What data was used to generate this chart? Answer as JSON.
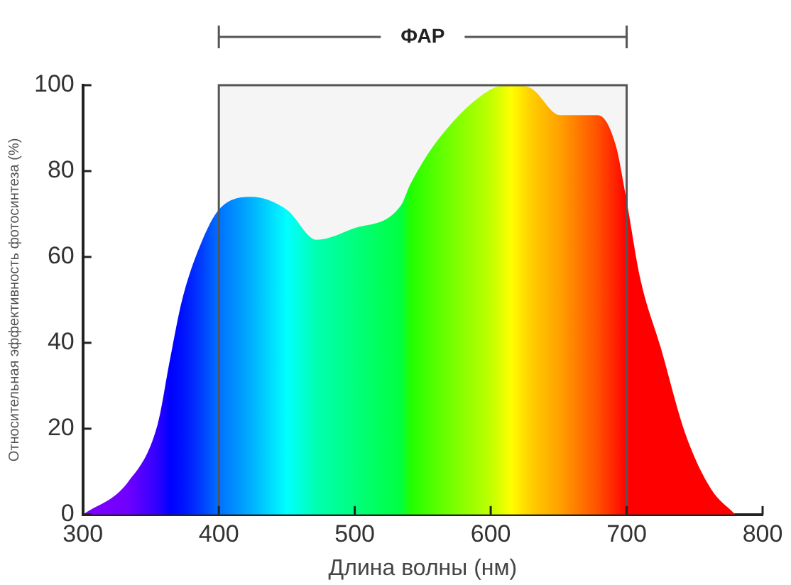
{
  "chart_data": {
    "type": "area",
    "xlabel": "Длина волны (нм)",
    "ylabel": "Относительная эффективность фотосинтеза (%)",
    "x": [
      300,
      333,
      355,
      364,
      373,
      388,
      400,
      424,
      450,
      472,
      498,
      534,
      541,
      563,
      600,
      615,
      629,
      651,
      679,
      692,
      700,
      710,
      725,
      743,
      762,
      780
    ],
    "values": [
      0,
      7.5,
      21,
      36,
      50,
      64,
      71,
      74,
      71,
      64,
      66.5,
      72,
      77,
      88,
      99,
      100,
      99.4,
      93,
      93,
      86,
      73,
      55,
      39,
      19,
      6,
      0
    ],
    "colors": [
      "#8000ff",
      "#7000ff",
      "#3000ff",
      "#0000ff",
      "#0010ff",
      "#0040ff",
      "#0070ff",
      "#00b0ff",
      "#00ffff",
      "#00ffb0",
      "#00ff80",
      "#00ff40",
      "#20ff00",
      "#60ff00",
      "#c0ff00",
      "#ffff00",
      "#ffd000",
      "#ffa000",
      "#ff5000",
      "#ff2000",
      "#ff0000",
      "#ff0000",
      "#ff0000",
      "#ff0000",
      "#ff0000",
      "#ff0000"
    ],
    "xlim": [
      300,
      800
    ],
    "xticks": [
      300,
      400,
      500,
      600,
      700,
      800
    ],
    "ylim": [
      0,
      100
    ],
    "yticks": [
      0,
      20,
      40,
      60,
      80,
      100
    ],
    "grid": false,
    "legend": false,
    "bands": [
      {
        "axis": "x",
        "from": 400,
        "to": 700,
        "label": "ФАР",
        "color": "#555555"
      }
    ]
  }
}
